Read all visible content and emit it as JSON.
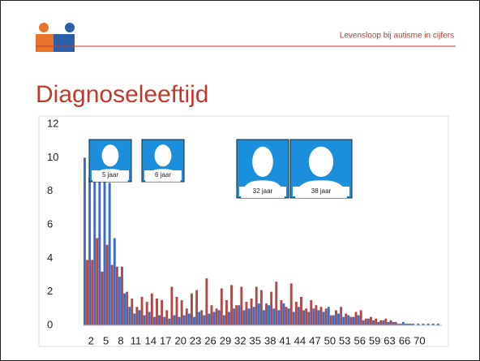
{
  "header": {
    "tagline": "Levensloop bij autisme in cijfers"
  },
  "chart_data": {
    "type": "bar",
    "title": "Diagnoseleeftijd",
    "categories": [
      null,
      2,
      null,
      null,
      5,
      null,
      null,
      8,
      null,
      null,
      11,
      null,
      null,
      14,
      null,
      null,
      17,
      null,
      null,
      20,
      null,
      null,
      23,
      null,
      null,
      26,
      null,
      null,
      29,
      null,
      null,
      32,
      null,
      null,
      35,
      null,
      null,
      38,
      null,
      null,
      41,
      null,
      null,
      44,
      null,
      null,
      47,
      null,
      null,
      50,
      null,
      null,
      53,
      null,
      null,
      56,
      null,
      null,
      59,
      null,
      null,
      63,
      null,
      null,
      66,
      null,
      null,
      70,
      null,
      null,
      null,
      null
    ],
    "series": [
      {
        "color": "#3a6fc4",
        "values": [
          10,
          8.8,
          8.7,
          8.7,
          8.7,
          8.5,
          5.2,
          2.9,
          1.9,
          1.1,
          0.7,
          0.9,
          0.6,
          0.8,
          0.5,
          0.6,
          0.5,
          0.4,
          0.6,
          0.5,
          0.6,
          0.7,
          0.5,
          0.8,
          0.6,
          0.7,
          0.8,
          0.9,
          0.6,
          0.8,
          1.0,
          1.2,
          0.9,
          1.0,
          1.1,
          1.3,
          0.9,
          1.2,
          1.0,
          0.9,
          1.3,
          1.0,
          0.8,
          1.1,
          0.9,
          0.8,
          1.0,
          0.9,
          0.8,
          1.1,
          0.6,
          0.7,
          0.5,
          0.6,
          0.5,
          0.6,
          0.3,
          0.4,
          0.3,
          0.2,
          0.3,
          0.2,
          0.2,
          0.1,
          0.2,
          0.1,
          0.1,
          0.1,
          0.1,
          0.1,
          0.1,
          0.1
        ]
      },
      {
        "color": "#b04a4a",
        "values": [
          3.9,
          3.9,
          5.2,
          3.2,
          4.8,
          3.6,
          3.5,
          3.5,
          2.0,
          1.6,
          1.1,
          1.7,
          1.4,
          1.9,
          1.6,
          1.5,
          0.9,
          2.3,
          1.7,
          1.5,
          1.0,
          1.9,
          2.1,
          0.9,
          2.8,
          1.2,
          1.0,
          2.2,
          1.5,
          2.4,
          1.2,
          2.3,
          1.4,
          1.6,
          2.3,
          2.1,
          1.3,
          2.0,
          2.6,
          1.5,
          1.1,
          2.5,
          1.4,
          1.7,
          1.0,
          1.5,
          1.2,
          1.1,
          1.0,
          0.6,
          0.9,
          1.1,
          0.7,
          0.5,
          0.8,
          0.9,
          0.4,
          0.5,
          0.4,
          0.3,
          0.4,
          0.3,
          0.2,
          0.1,
          0.1,
          0.1,
          0,
          0,
          0,
          0,
          0,
          0
        ]
      }
    ],
    "ylim": [
      0,
      12
    ],
    "yticks": [
      0,
      2,
      4,
      6,
      8,
      10,
      12
    ],
    "annotations": [
      "5 jaar",
      "6 jaar",
      "32 jaar",
      "38 jaar"
    ]
  }
}
